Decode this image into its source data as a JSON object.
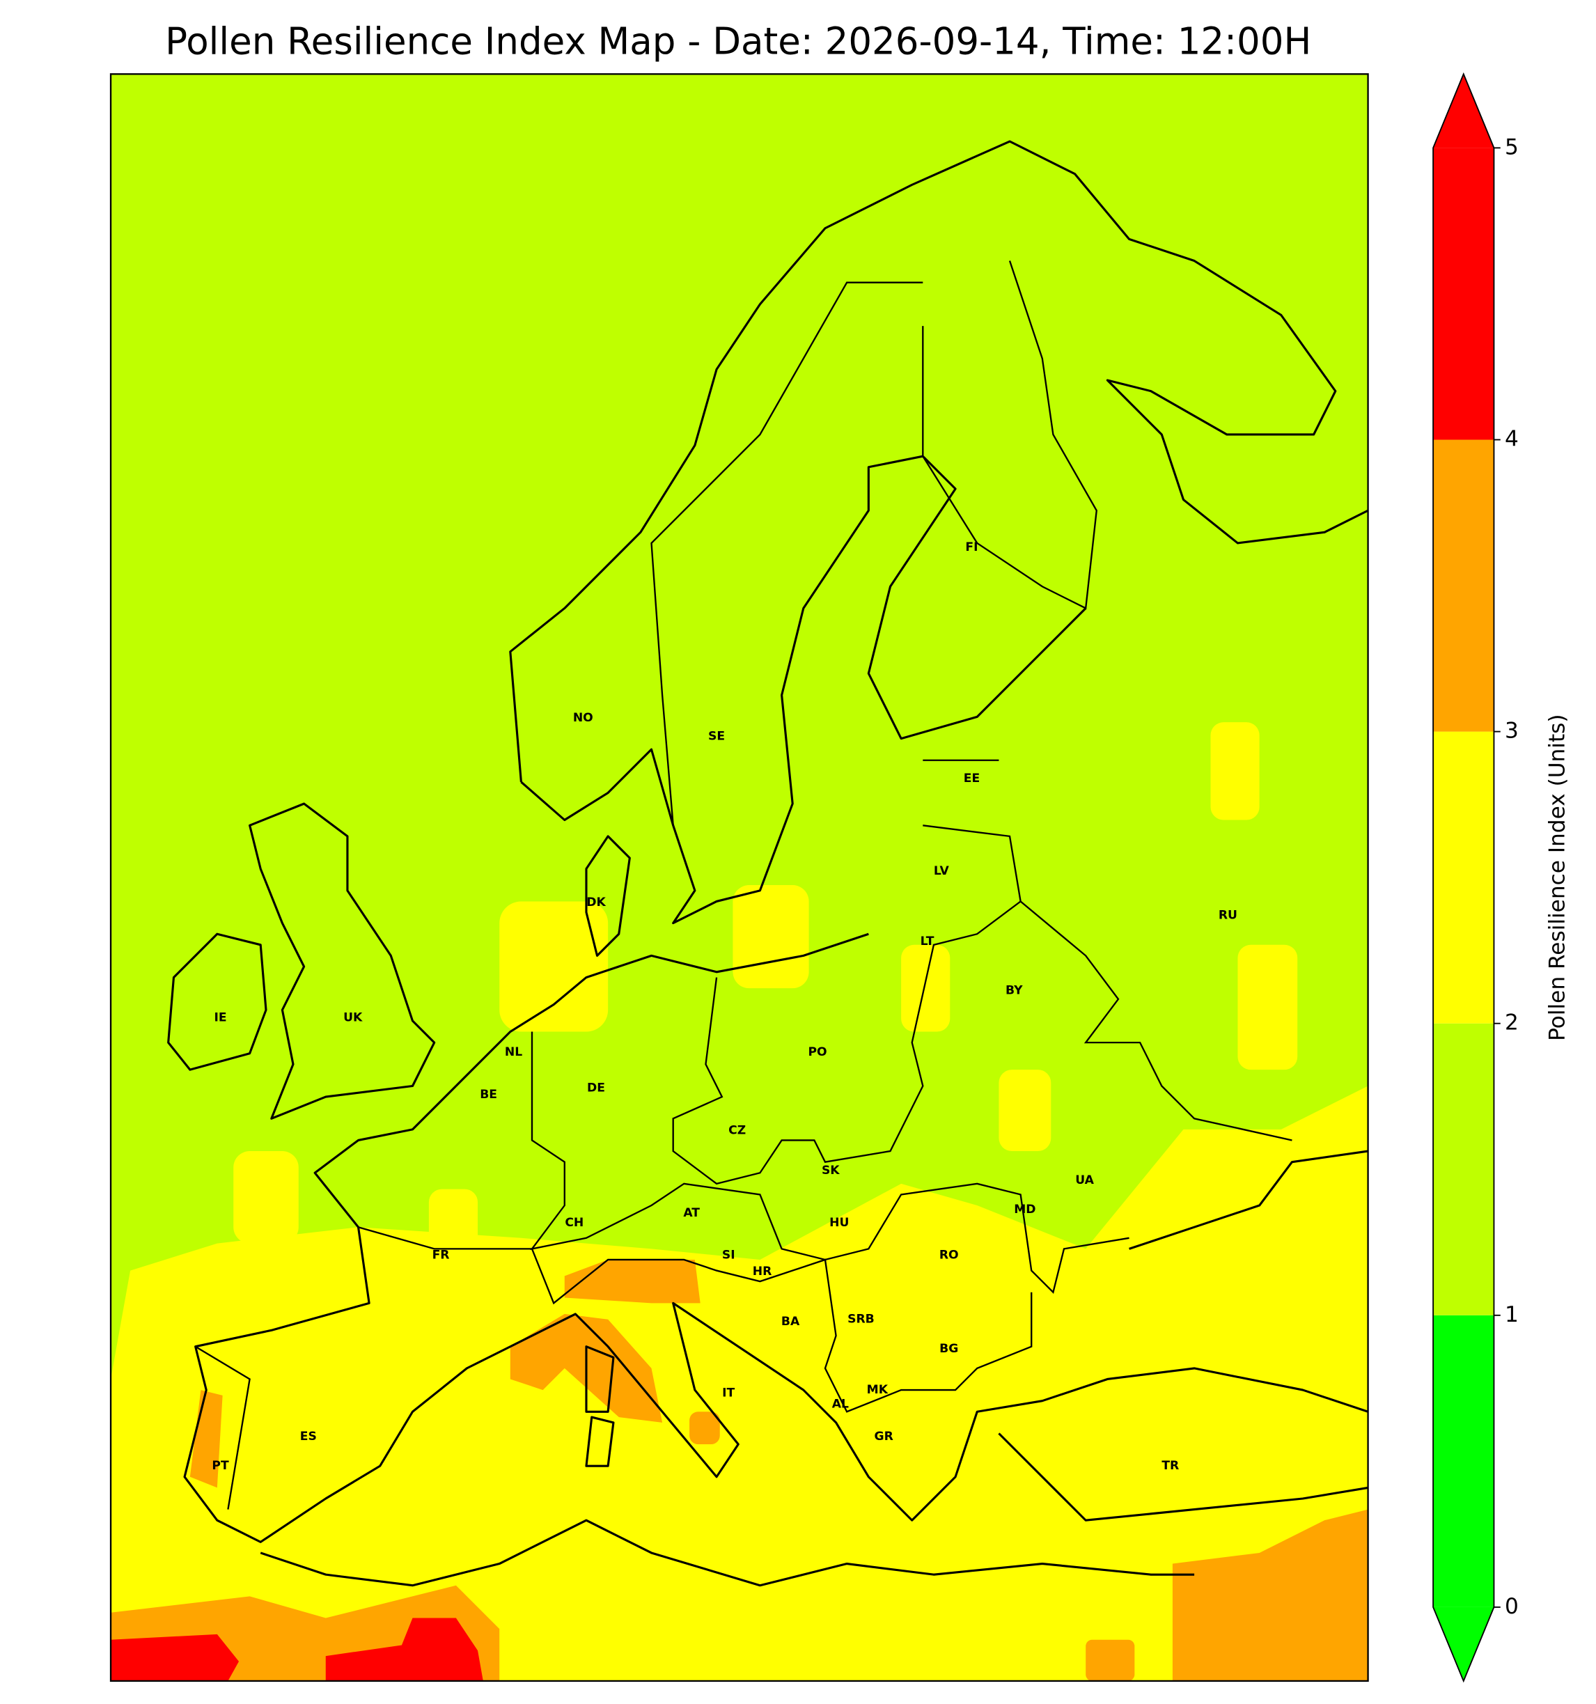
{
  "chart_data": {
    "type": "map",
    "title": "Pollen Resilience Index Map - Date: 2026-09-14, Time: 12:00H",
    "background_color": "#bfff00",
    "colorbar": {
      "label": "Pollen Resilience Index (Units)",
      "clim": [
        0,
        5
      ],
      "ticks": [
        0,
        1,
        2,
        3,
        4,
        5
      ],
      "boundaries": [
        0,
        1,
        2,
        3,
        4,
        5
      ],
      "colors": [
        "#00ff00",
        "#bfff00",
        "#ffff00",
        "#ffa500",
        "#ff0000"
      ],
      "under_color": "#00ff00",
      "over_color": "#ff0000"
    },
    "country_labels": [
      "NO",
      "SE",
      "FI",
      "EE",
      "LV",
      "LT",
      "RU",
      "BY",
      "DK",
      "IE",
      "UK",
      "NL",
      "BE",
      "DE",
      "PO",
      "CZ",
      "SK",
      "UA",
      "MD",
      "AT",
      "CH",
      "HU",
      "FR",
      "SI",
      "HR",
      "RO",
      "BA",
      "SRB",
      "BG",
      "IT",
      "MK",
      "AL",
      "GR",
      "ES",
      "PT",
      "TR"
    ]
  }
}
